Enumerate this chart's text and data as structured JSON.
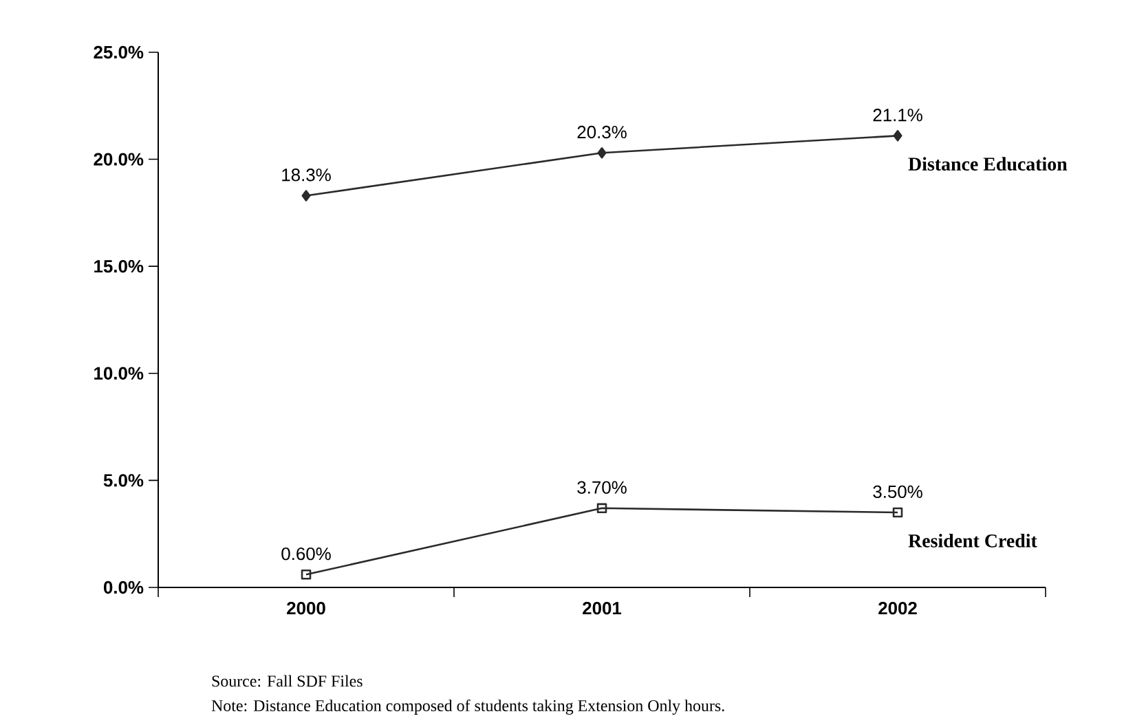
{
  "chart_data": {
    "type": "line",
    "categories": [
      "2000",
      "2001",
      "2002"
    ],
    "series": [
      {
        "name": "Distance Education",
        "color": "#2a2a2a",
        "marker": "diamond",
        "values": [
          18.3,
          20.3,
          21.1
        ],
        "value_labels": [
          "18.3%",
          "20.3%",
          "21.1%"
        ]
      },
      {
        "name": "Resident Credit",
        "color": "#2a2a2a",
        "marker": "square",
        "values": [
          0.6,
          3.7,
          3.5
        ],
        "value_labels": [
          "0.60%",
          "3.70%",
          "3.50%"
        ]
      }
    ],
    "ylim": [
      0,
      25
    ],
    "yticks": [
      {
        "value": 0,
        "label": "0.0%"
      },
      {
        "value": 5,
        "label": "5.0%"
      },
      {
        "value": 10,
        "label": "10.0%"
      },
      {
        "value": 15,
        "label": "15.0%"
      },
      {
        "value": 20,
        "label": "20.0%"
      },
      {
        "value": 25,
        "label": "25.0%"
      }
    ],
    "grid": false,
    "annotations": [
      "Source: Fall SDF Files",
      "Note: Distance Education composed of students taking Extension Only hours."
    ]
  }
}
